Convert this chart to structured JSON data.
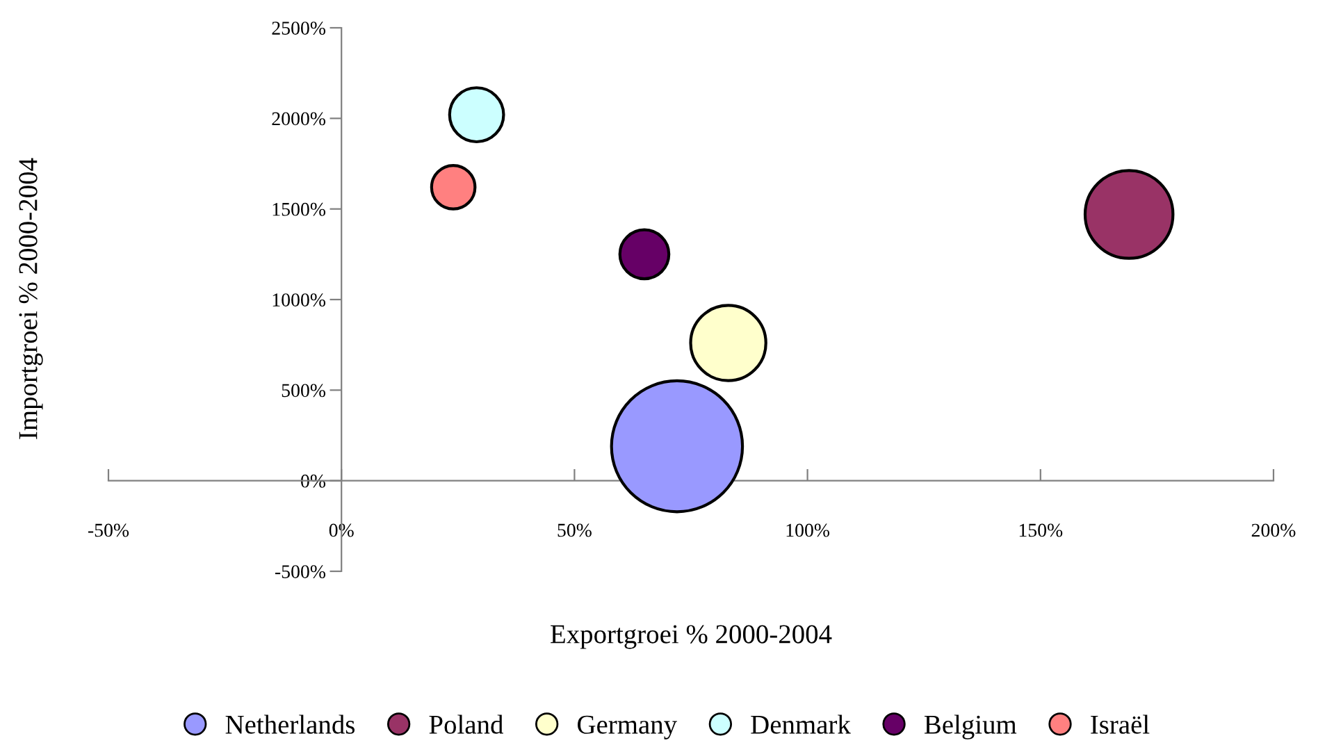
{
  "chart_data": {
    "type": "bubble",
    "xlabel": "Exportgroei % 2000-2004",
    "ylabel": "Importgroei % 2000-2004",
    "xlim": [
      -50,
      200
    ],
    "ylim": [
      -500,
      2500
    ],
    "xticks": [
      {
        "value": -50,
        "label": "-50%"
      },
      {
        "value": 0,
        "label": "0%"
      },
      {
        "value": 50,
        "label": "50%"
      },
      {
        "value": 100,
        "label": "100%"
      },
      {
        "value": 150,
        "label": "150%"
      },
      {
        "value": 200,
        "label": "200%"
      }
    ],
    "yticks": [
      {
        "value": -500,
        "label": "-500%"
      },
      {
        "value": 0,
        "label": "0%"
      },
      {
        "value": 500,
        "label": "500%"
      },
      {
        "value": 1000,
        "label": "1000%"
      },
      {
        "value": 1500,
        "label": "1500%"
      },
      {
        "value": 2000,
        "label": "2000%"
      },
      {
        "value": 2500,
        "label": "2500%"
      }
    ],
    "grid": false,
    "legend": "bottom",
    "series": [
      {
        "name": "Netherlands",
        "color": "#9999ff",
        "x": [
          72
        ],
        "values": [
          190
        ],
        "sizes": [
          1
        ]
      },
      {
        "name": "Poland",
        "color": "#993366",
        "x": [
          169
        ],
        "values": [
          1470
        ],
        "sizes": [
          0.45
        ]
      },
      {
        "name": "Germany",
        "color": "#ffffcc",
        "x": [
          83
        ],
        "values": [
          760
        ],
        "sizes": [
          0.33
        ]
      },
      {
        "name": "Denmark",
        "color": "#ccffff",
        "x": [
          29
        ],
        "values": [
          2020
        ],
        "sizes": [
          0.17
        ]
      },
      {
        "name": "Belgium",
        "color": "#660066",
        "x": [
          65
        ],
        "values": [
          1250
        ],
        "sizes": [
          0.14
        ]
      },
      {
        "name": "Israël",
        "color": "#ff8080",
        "x": [
          24
        ],
        "values": [
          1620
        ],
        "sizes": [
          0.11
        ]
      }
    ]
  }
}
